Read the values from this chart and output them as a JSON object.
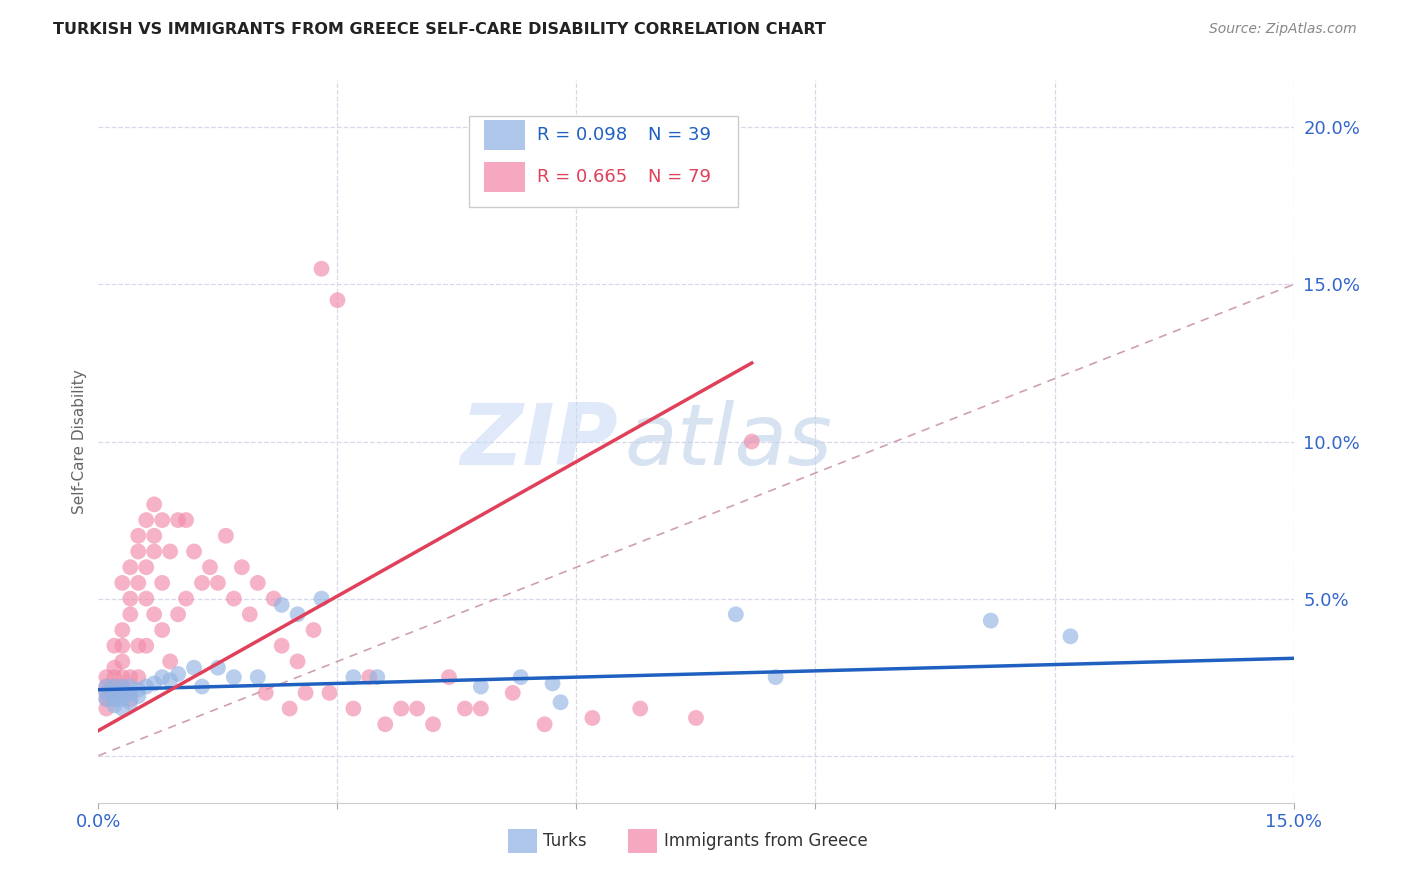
{
  "title": "TURKISH VS IMMIGRANTS FROM GREECE SELF-CARE DISABILITY CORRELATION CHART",
  "source": "Source: ZipAtlas.com",
  "ylabel": "Self-Care Disability",
  "xlim": [
    0.0,
    0.15
  ],
  "ylim": [
    -0.015,
    0.215
  ],
  "xticks": [
    0.0,
    0.03,
    0.06,
    0.09,
    0.12,
    0.15
  ],
  "xtick_labels": [
    "0.0%",
    "",
    "",
    "",
    "",
    "15.0%"
  ],
  "yticks_right": [
    0.0,
    0.05,
    0.1,
    0.15,
    0.2
  ],
  "ytick_labels_right": [
    "",
    "5.0%",
    "10.0%",
    "15.0%",
    "20.0%"
  ],
  "blue_color": "#92b4e3",
  "pink_color": "#f28baa",
  "blue_line_color": "#2060c0",
  "pink_line_color": "#e0405a",
  "dashed_line_color": "#d0a0b0",
  "background_color": "#ffffff",
  "watermark_zip": "ZIP",
  "watermark_atlas": "atlas",
  "turks_x": [
    0.001,
    0.001,
    0.001,
    0.002,
    0.002,
    0.002,
    0.002,
    0.003,
    0.003,
    0.003,
    0.003,
    0.004,
    0.004,
    0.004,
    0.005,
    0.005,
    0.006,
    0.007,
    0.008,
    0.009,
    0.01,
    0.012,
    0.013,
    0.015,
    0.017,
    0.02,
    0.023,
    0.025,
    0.028,
    0.032,
    0.035,
    0.048,
    0.053,
    0.057,
    0.058,
    0.08,
    0.085,
    0.112,
    0.122
  ],
  "turks_y": [
    0.022,
    0.02,
    0.018,
    0.022,
    0.02,
    0.018,
    0.016,
    0.022,
    0.02,
    0.018,
    0.015,
    0.022,
    0.02,
    0.017,
    0.021,
    0.019,
    0.022,
    0.023,
    0.025,
    0.024,
    0.026,
    0.028,
    0.022,
    0.028,
    0.025,
    0.025,
    0.048,
    0.045,
    0.05,
    0.025,
    0.025,
    0.022,
    0.025,
    0.023,
    0.017,
    0.045,
    0.025,
    0.043,
    0.038
  ],
  "greece_x": [
    0.001,
    0.001,
    0.001,
    0.001,
    0.001,
    0.002,
    0.002,
    0.002,
    0.002,
    0.002,
    0.002,
    0.003,
    0.003,
    0.003,
    0.003,
    0.003,
    0.003,
    0.003,
    0.004,
    0.004,
    0.004,
    0.004,
    0.004,
    0.005,
    0.005,
    0.005,
    0.005,
    0.005,
    0.006,
    0.006,
    0.006,
    0.006,
    0.007,
    0.007,
    0.007,
    0.007,
    0.008,
    0.008,
    0.008,
    0.009,
    0.009,
    0.01,
    0.01,
    0.011,
    0.011,
    0.012,
    0.013,
    0.014,
    0.015,
    0.016,
    0.017,
    0.018,
    0.019,
    0.02,
    0.021,
    0.022,
    0.023,
    0.024,
    0.025,
    0.026,
    0.027,
    0.028,
    0.029,
    0.03,
    0.032,
    0.034,
    0.036,
    0.038,
    0.04,
    0.042,
    0.044,
    0.046,
    0.048,
    0.052,
    0.056,
    0.062,
    0.068,
    0.075,
    0.082
  ],
  "greece_y": [
    0.02,
    0.022,
    0.018,
    0.025,
    0.015,
    0.025,
    0.035,
    0.02,
    0.022,
    0.018,
    0.028,
    0.022,
    0.03,
    0.055,
    0.025,
    0.035,
    0.02,
    0.04,
    0.025,
    0.045,
    0.05,
    0.018,
    0.06,
    0.035,
    0.065,
    0.025,
    0.055,
    0.07,
    0.06,
    0.05,
    0.075,
    0.035,
    0.07,
    0.065,
    0.045,
    0.08,
    0.055,
    0.075,
    0.04,
    0.065,
    0.03,
    0.075,
    0.045,
    0.075,
    0.05,
    0.065,
    0.055,
    0.06,
    0.055,
    0.07,
    0.05,
    0.06,
    0.045,
    0.055,
    0.02,
    0.05,
    0.035,
    0.015,
    0.03,
    0.02,
    0.04,
    0.155,
    0.02,
    0.145,
    0.015,
    0.025,
    0.01,
    0.015,
    0.015,
    0.01,
    0.025,
    0.015,
    0.015,
    0.02,
    0.01,
    0.012,
    0.015,
    0.012,
    0.1
  ],
  "pink_line_x0": 0.0,
  "pink_line_y0": 0.008,
  "pink_line_x1": 0.082,
  "pink_line_y1": 0.125,
  "blue_line_x0": 0.0,
  "blue_line_y0": 0.021,
  "blue_line_x1": 0.15,
  "blue_line_y1": 0.031
}
